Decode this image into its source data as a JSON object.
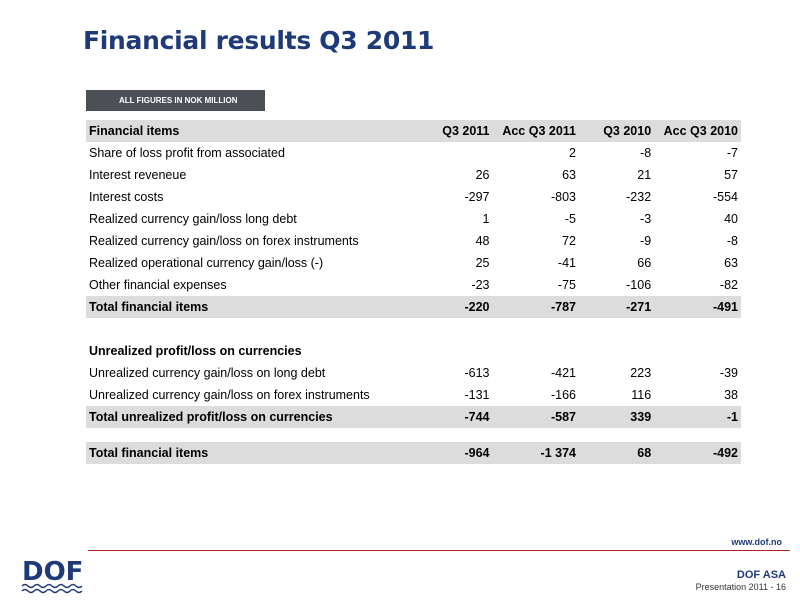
{
  "title": "Financial results Q3 2011",
  "badge": "ALL FIGURES IN NOK MILLION",
  "table": {
    "headers": [
      "Financial items",
      "Q3 2011",
      "Acc Q3 2011",
      "Q3 2010",
      "Acc Q3 2010"
    ],
    "rows": [
      [
        "Share of loss profit from associated",
        "",
        "2",
        "-8",
        "-7"
      ],
      [
        "Interest reveneue",
        "26",
        "63",
        "21",
        "57"
      ],
      [
        "Interest costs",
        "-297",
        "-803",
        "-232",
        "-554"
      ],
      [
        "Realized currency gain/loss long debt",
        "1",
        "-5",
        "-3",
        "40"
      ],
      [
        "Realized currency gain/loss on forex instruments",
        "48",
        "72",
        "-9",
        "-8"
      ],
      [
        "Realized operational  currency gain/loss (-)",
        "25",
        "-41",
        "66",
        "63"
      ],
      [
        "Other financial expenses",
        "-23",
        "-75",
        "-106",
        "-82"
      ],
      [
        "Total financial items",
        "-220",
        "-787",
        "-271",
        "-491"
      ],
      [
        "Unrealized profit/loss on currencies",
        "",
        "",
        "",
        ""
      ],
      [
        "Unrealized currency gain/loss on long debt",
        "-613",
        "-421",
        "223",
        "-39"
      ],
      [
        "Unrealized currency gain/loss on forex instruments",
        "-131",
        "-166",
        "116",
        "38"
      ],
      [
        "Total unrealized profit/loss on currencies",
        "-744",
        "-587",
        "339",
        "-1"
      ],
      [
        "Total financial items",
        "-964",
        "-1 374",
        "68",
        "-492"
      ]
    ]
  },
  "footer": {
    "url": "www.dof.no",
    "company": "DOF ASA",
    "slide": "Presentation 2011 - 16",
    "logo_text": "DOF"
  },
  "colors": {
    "title": "#1f3a78",
    "badge_bg": "#4b4f56",
    "row_highlight": "#dcdcdc",
    "rule": "#b11f24"
  }
}
